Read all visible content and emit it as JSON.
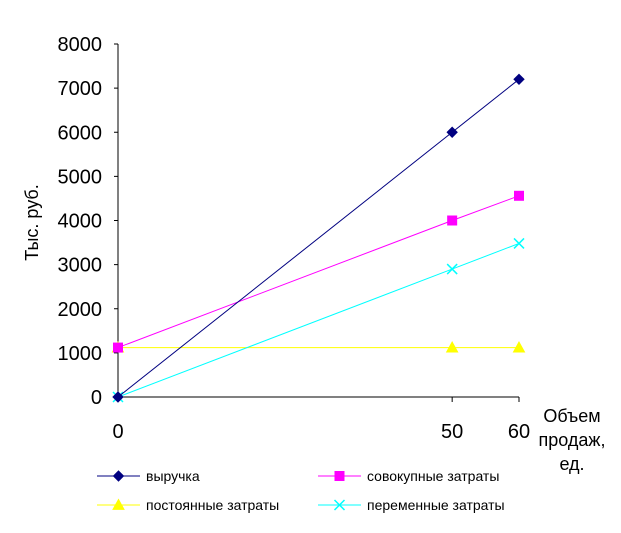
{
  "chart_data": {
    "type": "line",
    "title": "",
    "xlabel": "Объем продаж, ед.",
    "xlabel_lines": [
      "Объем",
      "продаж,",
      "ед."
    ],
    "ylabel": "Тыс. руб.",
    "x": [
      0,
      50,
      60
    ],
    "x_ticks": [
      "0",
      "50",
      "60"
    ],
    "xlim": [
      0,
      60
    ],
    "ylim": [
      0,
      8000
    ],
    "y_ticks": [
      "0",
      "1000",
      "2000",
      "3000",
      "4000",
      "5000",
      "6000",
      "7000",
      "8000"
    ],
    "grid": false,
    "legend_position": "bottom",
    "series": [
      {
        "name": "выручка",
        "values": [
          0,
          6000,
          7200
        ],
        "color": "#000080",
        "marker": "diamond"
      },
      {
        "name": "совокупные затраты",
        "values": [
          1120,
          4000,
          4560
        ],
        "color": "#ff00ff",
        "marker": "square"
      },
      {
        "name": "постоянные затраты",
        "values": [
          1120,
          1120,
          1120
        ],
        "color": "#ffff00",
        "marker": "triangle"
      },
      {
        "name": "переменные затраты",
        "values": [
          0,
          2900,
          3480
        ],
        "color": "#00ffff",
        "marker": "x"
      }
    ]
  }
}
